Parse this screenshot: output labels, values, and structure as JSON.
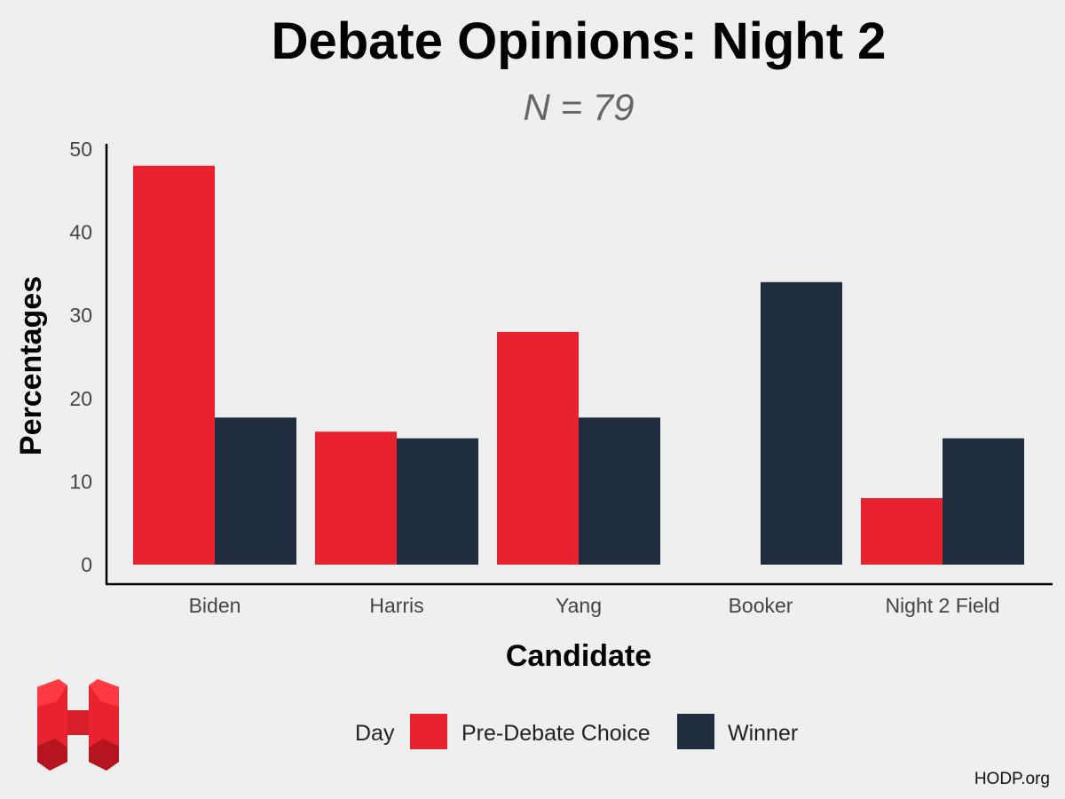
{
  "chart_data": {
    "type": "bar",
    "title": "Debate Opinions: Night 2",
    "subtitle": "N =  79",
    "xlabel": "Candidate",
    "ylabel": "Percentages",
    "categories": [
      "Biden",
      "Harris",
      "Yang",
      "Booker",
      "Night 2 Field"
    ],
    "series": [
      {
        "name": "Pre-Debate Choice",
        "color": "#e8232f",
        "values": [
          48,
          16,
          28,
          0,
          8
        ]
      },
      {
        "name": "Winner",
        "color": "#202d3e",
        "values": [
          17.7,
          15.2,
          17.7,
          34,
          15.2
        ]
      }
    ],
    "ylim": [
      0,
      50
    ],
    "yticks": [
      0,
      10,
      20,
      30,
      40,
      50
    ],
    "grid": false,
    "legend": {
      "title": "Day",
      "position": "bottom"
    }
  },
  "logo": {
    "name": "hodp-logo-icon",
    "color": "#e8232f"
  },
  "credit": "HODP.org"
}
